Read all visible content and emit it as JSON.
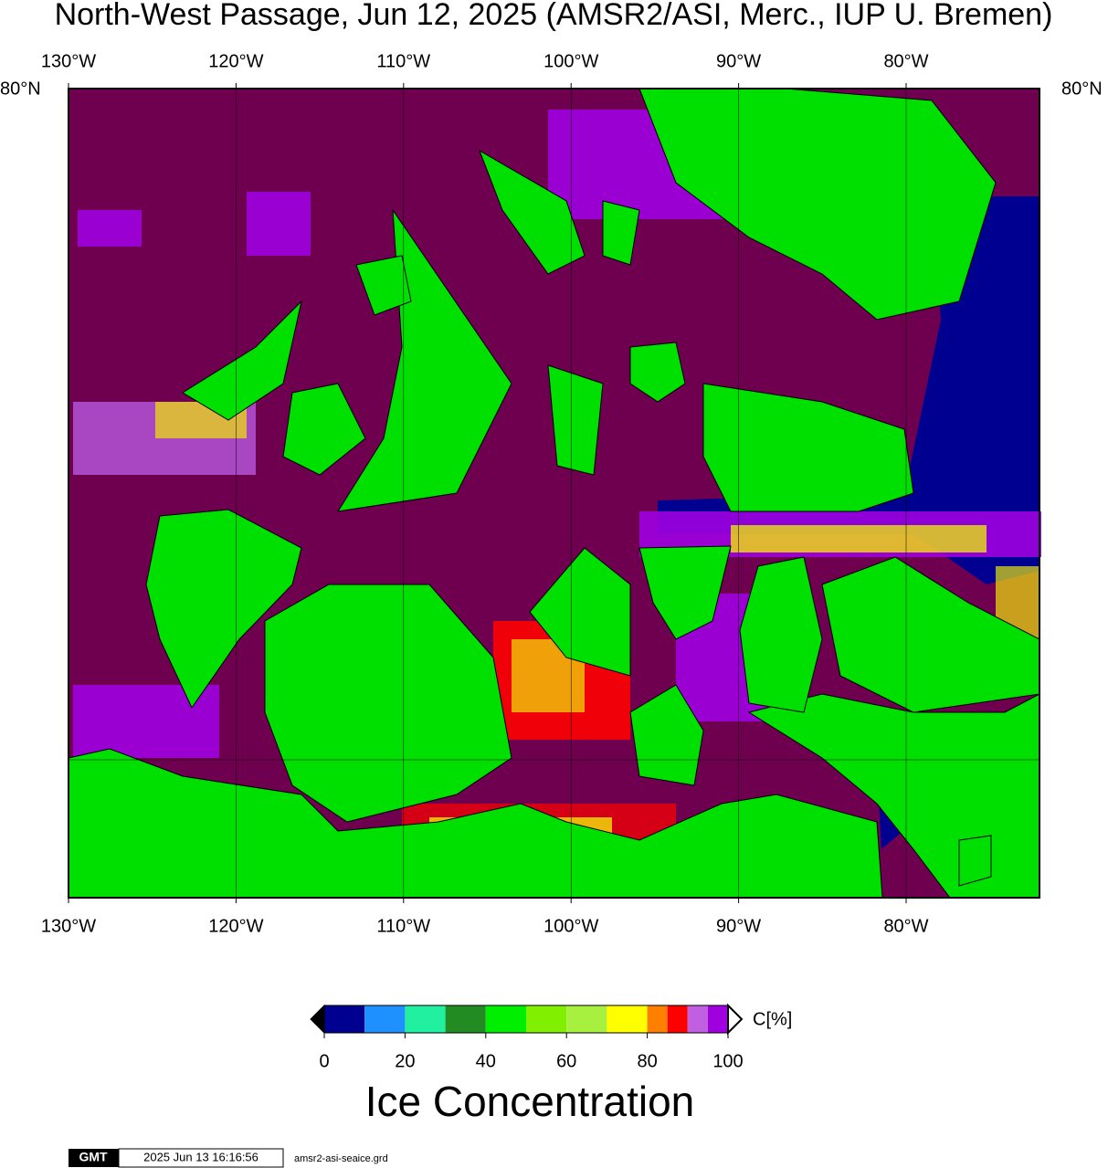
{
  "title": "North-West Passage, Jun 12, 2025 (AMSR2/ASI, Merc., IUP U. Bremen)",
  "map": {
    "lon_range": [
      -130,
      -72.04
    ],
    "lon_ticks": [
      {
        "value": -130,
        "label": "130°W"
      },
      {
        "value": -120,
        "label": "120°W"
      },
      {
        "value": -110,
        "label": "110°W"
      },
      {
        "value": -100,
        "label": "100°W"
      },
      {
        "value": -90,
        "label": "90°W"
      },
      {
        "value": -80,
        "label": "80°W"
      }
    ],
    "lat_label": "80°N"
  },
  "colorbar": {
    "bins": [
      0,
      10,
      20,
      30,
      40,
      50,
      60,
      70,
      80,
      85,
      90,
      95,
      100
    ],
    "colors": [
      "#000090",
      "#1e90ff",
      "#20f0a0",
      "#228b22",
      "#00ee00",
      "#80f000",
      "#a8f040",
      "#ffff00",
      "#ff8000",
      "#ff0000",
      "#c060e0",
      "#a000e0"
    ],
    "ticks": [
      0,
      20,
      40,
      60,
      80,
      100
    ],
    "unit": "C[%]",
    "label": "Ice Concentration"
  },
  "footer": {
    "logo": "GMT",
    "timestamp": "2025 Jun 13 16:16:56",
    "file": "amsr2-asi-seaice.grd"
  }
}
